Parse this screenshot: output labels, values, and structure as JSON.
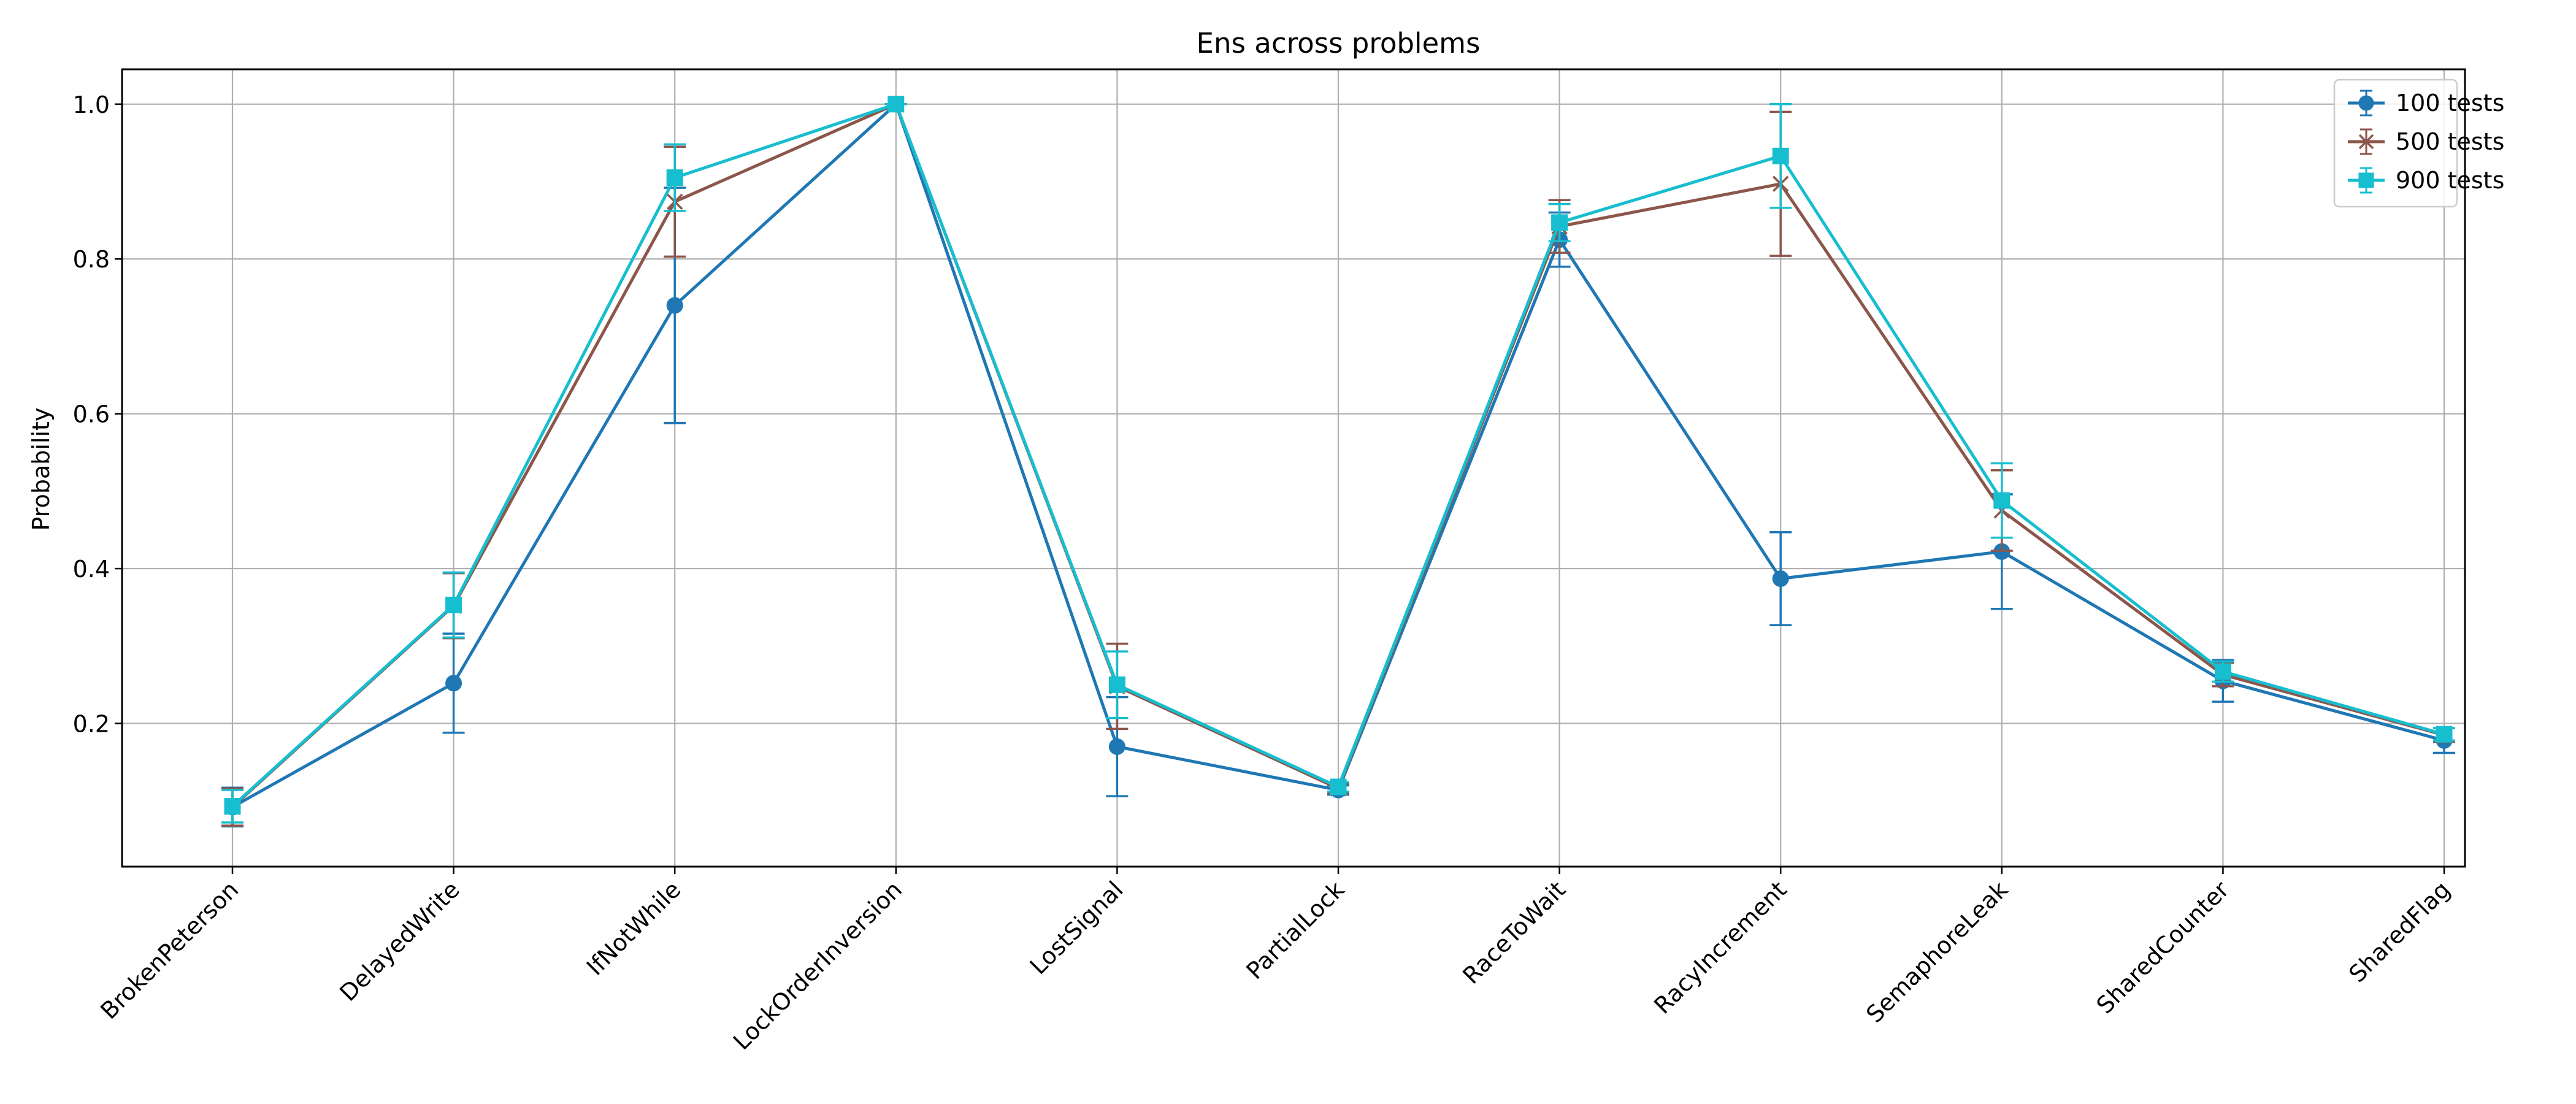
{
  "chart_data": {
    "type": "line",
    "title": "Ens across problems",
    "xlabel": "",
    "ylabel": "Probability",
    "categories": [
      "BrokenPeterson",
      "DelayedWrite",
      "IfNotWhile",
      "LockOrderInversion",
      "LostSignal",
      "PartialLock",
      "RaceToWait",
      "RacyIncrement",
      "SemaphoreLeak",
      "SharedCounter",
      "SharedFlag"
    ],
    "ylim": [
      0.015,
      1.045
    ],
    "yticks": [
      0.2,
      0.4,
      0.6,
      0.8,
      1.0
    ],
    "ytick_labels": [
      "0.2",
      "0.4",
      "0.6",
      "0.8",
      "1.0"
    ],
    "grid": true,
    "legend_position": "top-right",
    "series": [
      {
        "name": "100 tests",
        "color": "#1f77b4",
        "marker": "circle",
        "values": [
          0.092,
          0.252,
          0.74,
          1.0,
          0.17,
          0.114,
          0.825,
          0.387,
          0.422,
          0.255,
          0.178
        ],
        "err_low": [
          0.067,
          0.188,
          0.588,
          1.0,
          0.106,
          0.108,
          0.79,
          0.327,
          0.348,
          0.228,
          0.162
        ],
        "err_high": [
          0.117,
          0.316,
          0.892,
          1.0,
          0.234,
          0.12,
          0.86,
          0.447,
          0.496,
          0.282,
          0.194
        ]
      },
      {
        "name": "500 tests",
        "color": "#8c564b",
        "marker": "x",
        "values": [
          0.092,
          0.352,
          0.874,
          1.0,
          0.248,
          0.116,
          0.842,
          0.897,
          0.475,
          0.263,
          0.185
        ],
        "err_low": [
          0.068,
          0.31,
          0.803,
          1.0,
          0.193,
          0.11,
          0.808,
          0.804,
          0.423,
          0.248,
          0.176
        ],
        "err_high": [
          0.116,
          0.394,
          0.945,
          1.0,
          0.303,
          0.122,
          0.876,
          0.99,
          0.527,
          0.278,
          0.194
        ]
      },
      {
        "name": "900 tests",
        "color": "#17becf",
        "marker": "square",
        "values": [
          0.093,
          0.353,
          0.905,
          1.0,
          0.25,
          0.118,
          0.847,
          0.933,
          0.488,
          0.267,
          0.186
        ],
        "err_low": [
          0.072,
          0.311,
          0.862,
          1.0,
          0.207,
          0.112,
          0.823,
          0.866,
          0.44,
          0.254,
          0.178
        ],
        "err_high": [
          0.114,
          0.395,
          0.948,
          1.0,
          0.293,
          0.124,
          0.871,
          1.0,
          0.536,
          0.28,
          0.194
        ]
      }
    ]
  }
}
